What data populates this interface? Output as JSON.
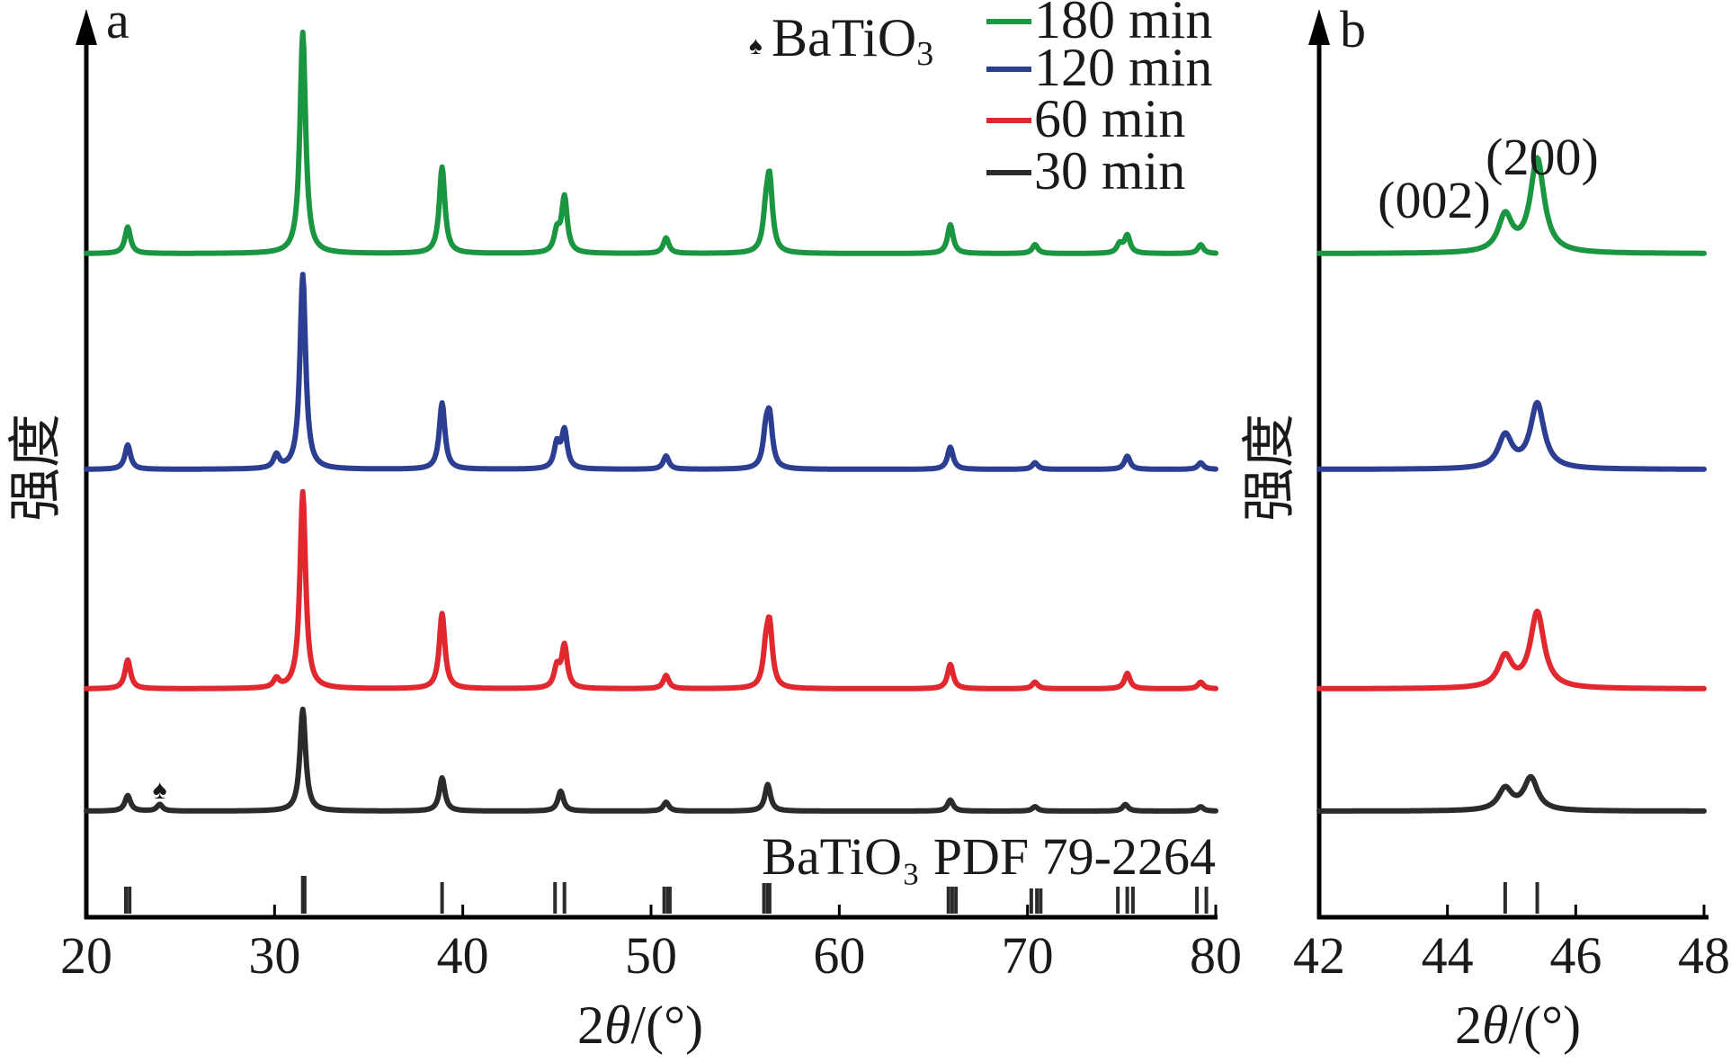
{
  "chart_data": [
    {
      "type": "line",
      "panel_label": "a",
      "xlabel_prefix": "2",
      "xlabel_theta": "θ",
      "xlabel_suffix": "/(°)",
      "ylabel": "强度",
      "xlim": [
        20,
        80
      ],
      "x_ticks": [
        "20",
        "30",
        "40",
        "50",
        "60",
        "70",
        "80"
      ],
      "grid": false,
      "legend_position": "top-right",
      "series": [
        {
          "name": "180 min",
          "color": "#1a9641",
          "peaks": [
            [
              22.2,
              12
            ],
            [
              31.5,
              100
            ],
            [
              38.9,
              39
            ],
            [
              45.0,
              9
            ],
            [
              45.4,
              25
            ],
            [
              50.8,
              7
            ],
            [
              56.1,
              14
            ],
            [
              56.3,
              31
            ],
            [
              65.9,
              13
            ],
            [
              70.4,
              4
            ],
            [
              74.9,
              4
            ],
            [
              75.3,
              8
            ],
            [
              79.2,
              4
            ]
          ]
        },
        {
          "name": "120 min",
          "color": "#2c3e91",
          "peaks": [
            [
              22.2,
              11
            ],
            [
              30.1,
              6
            ],
            [
              31.5,
              88
            ],
            [
              38.9,
              30
            ],
            [
              45.0,
              11
            ],
            [
              45.4,
              17
            ],
            [
              50.8,
              6
            ],
            [
              56.1,
              14
            ],
            [
              56.3,
              21
            ],
            [
              65.9,
              10
            ],
            [
              70.4,
              3
            ],
            [
              75.3,
              6
            ],
            [
              79.2,
              3
            ]
          ]
        },
        {
          "name": "60 min",
          "color": "#e0282e",
          "peaks": [
            [
              22.2,
              13
            ],
            [
              30.1,
              4
            ],
            [
              31.5,
              89
            ],
            [
              38.9,
              34
            ],
            [
              45.0,
              9
            ],
            [
              45.4,
              19
            ],
            [
              50.8,
              6
            ],
            [
              56.1,
              14
            ],
            [
              56.3,
              26
            ],
            [
              65.9,
              11
            ],
            [
              70.4,
              3
            ],
            [
              75.3,
              7
            ],
            [
              79.2,
              3
            ]
          ]
        },
        {
          "name": "30 min",
          "color": "#2b2b2b",
          "peaks": [
            [
              22.2,
              7
            ],
            [
              23.9,
              3
            ],
            [
              31.5,
              46
            ],
            [
              38.9,
              15
            ],
            [
              45.2,
              9
            ],
            [
              50.8,
              4
            ],
            [
              56.2,
              12
            ],
            [
              65.9,
              5
            ],
            [
              70.4,
              2
            ],
            [
              75.2,
              3
            ],
            [
              79.2,
              2
            ]
          ]
        }
      ],
      "reference": {
        "label": "BaTiO₃ PDF 79-2264",
        "positions": [
          22.1,
          22.3,
          31.5,
          31.6,
          38.9,
          44.9,
          45.4,
          50.7,
          50.9,
          51.0,
          56.0,
          56.2,
          56.3,
          65.8,
          66.0,
          66.2,
          70.2,
          70.5,
          70.7,
          74.8,
          75.3,
          75.6,
          79.0,
          79.5
        ],
        "heights": [
          30,
          30,
          42,
          42,
          35,
          35,
          35,
          30,
          30,
          30,
          34,
          34,
          34,
          30,
          30,
          30,
          28,
          28,
          28,
          30,
          30,
          30,
          30,
          30
        ]
      },
      "marker": {
        "symbol": "♠",
        "label_text": "BaTiO",
        "label_sub": "3",
        "x": 23.9
      }
    },
    {
      "type": "line",
      "panel_label": "b",
      "xlabel_prefix": "2",
      "xlabel_theta": "θ",
      "xlabel_suffix": "/(°)",
      "ylabel": "强度",
      "xlim": [
        42,
        48
      ],
      "x_ticks": [
        "42",
        "44",
        "46",
        "48"
      ],
      "grid": false,
      "annotations": [
        {
          "text": "(002)",
          "x": 44.9
        },
        {
          "text": "(200)",
          "x": 45.4
        }
      ],
      "series": [
        {
          "name": "180 min",
          "color": "#1a9641",
          "peaks": [
            [
              44.9,
              20
            ],
            [
              45.4,
              52
            ]
          ]
        },
        {
          "name": "120 min",
          "color": "#2c3e91",
          "peaks": [
            [
              44.9,
              18
            ],
            [
              45.4,
              36
            ]
          ]
        },
        {
          "name": "60 min",
          "color": "#e0282e",
          "peaks": [
            [
              44.9,
              17
            ],
            [
              45.4,
              42
            ]
          ]
        },
        {
          "name": "30 min",
          "color": "#2b2b2b",
          "peaks": [
            [
              44.9,
              12
            ],
            [
              45.3,
              18
            ]
          ]
        }
      ],
      "reference": {
        "positions": [
          44.9,
          45.4
        ],
        "heights": [
          35,
          35
        ]
      }
    }
  ]
}
